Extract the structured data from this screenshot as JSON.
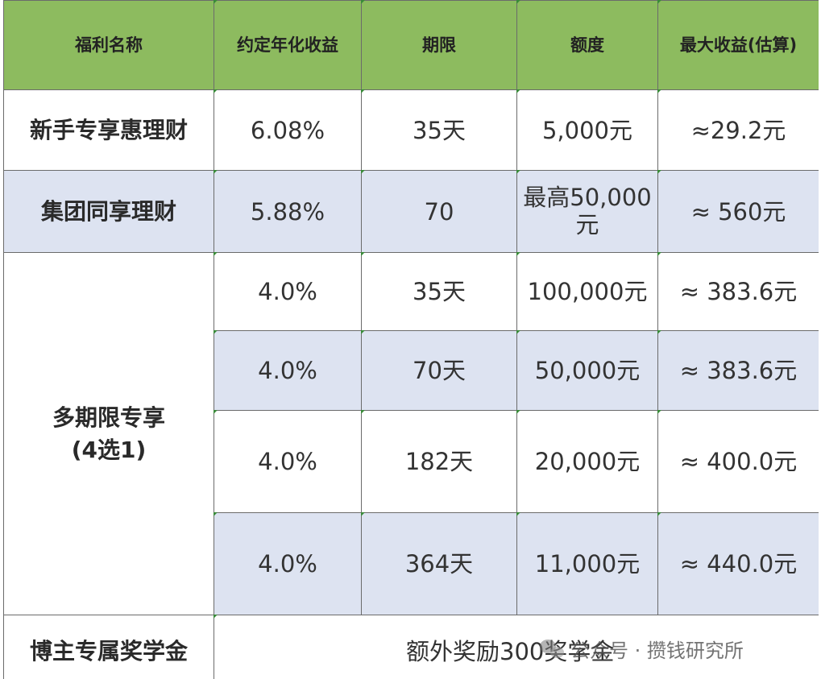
{
  "table": {
    "headers": [
      "福利名称",
      "约定年化收益",
      "期限",
      "额度",
      "最大收益(估算)"
    ],
    "rows": [
      {
        "name": "新手专享惠理财",
        "rate": "6.08%",
        "term": "35天",
        "amount": "5,000元",
        "max": "≈29.2元"
      },
      {
        "name": "集团同享理财",
        "rate": "5.88%",
        "term": "70",
        "amount": "最高50,000元",
        "max": "≈ 560元"
      }
    ],
    "group": {
      "name_line1": "多期限专享",
      "name_line2": "(4选1)",
      "rows": [
        {
          "rate": "4.0%",
          "term": "35天",
          "amount": "100,000元",
          "max": "≈ 383.6元"
        },
        {
          "rate": "4.0%",
          "term": "70天",
          "amount": "50,000元",
          "max": "≈ 383.6元"
        },
        {
          "rate": "4.0%",
          "term": "182天",
          "amount": "20,000元",
          "max": "≈ 400.0元"
        },
        {
          "rate": "4.0%",
          "term": "364天",
          "amount": "11,000元",
          "max": "≈ 440.0元"
        }
      ]
    },
    "bonus": {
      "name": "博主专属奖学金",
      "note": "额外奖励300奖学金"
    }
  },
  "watermark": {
    "text": "公众号 · 攒钱研究所",
    "icon": "wechat-logo-icon"
  },
  "colors": {
    "header_bg": "#8dbb5f",
    "alt_row_bg": "#dde3f1",
    "border": "#6b6b6b"
  }
}
